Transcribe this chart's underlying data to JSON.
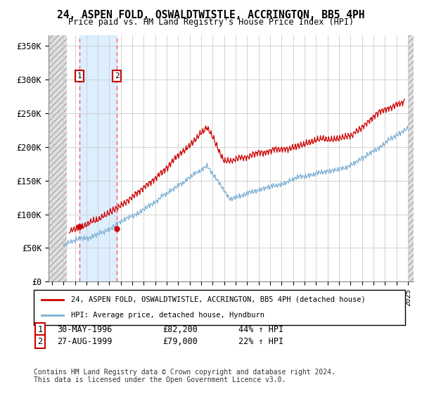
{
  "title": "24, ASPEN FOLD, OSWALDTWISTLE, ACCRINGTON, BB5 4PH",
  "subtitle": "Price paid vs. HM Land Registry's House Price Index (HPI)",
  "ylabel_ticks": [
    "£0",
    "£50K",
    "£100K",
    "£150K",
    "£200K",
    "£250K",
    "£300K",
    "£350K"
  ],
  "ytick_values": [
    0,
    50000,
    100000,
    150000,
    200000,
    250000,
    300000,
    350000
  ],
  "ylim": [
    0,
    365000
  ],
  "xlim_start": 1993.7,
  "xlim_end": 2025.5,
  "hatch_end": 1995.3,
  "hatch_start_right": 2025.0,
  "sale1_x": 1996.41,
  "sale1_y": 82200,
  "sale1_label": "1",
  "sale2_x": 1999.65,
  "sale2_y": 79000,
  "sale2_label": "2",
  "legend_line1": "24, ASPEN FOLD, OSWALDTWISTLE, ACCRINGTON, BB5 4PH (detached house)",
  "legend_line2": "HPI: Average price, detached house, Hyndburn",
  "footer": "Contains HM Land Registry data © Crown copyright and database right 2024.\nThis data is licensed under the Open Government Licence v3.0.",
  "line_color_red": "#cc0000",
  "line_color_blue": "#7aafd4",
  "bg_sale_color": "#ddeeff",
  "vline_color": "#ff5555",
  "grid_color": "#cccccc",
  "hatch_color": "#bbbbbb"
}
